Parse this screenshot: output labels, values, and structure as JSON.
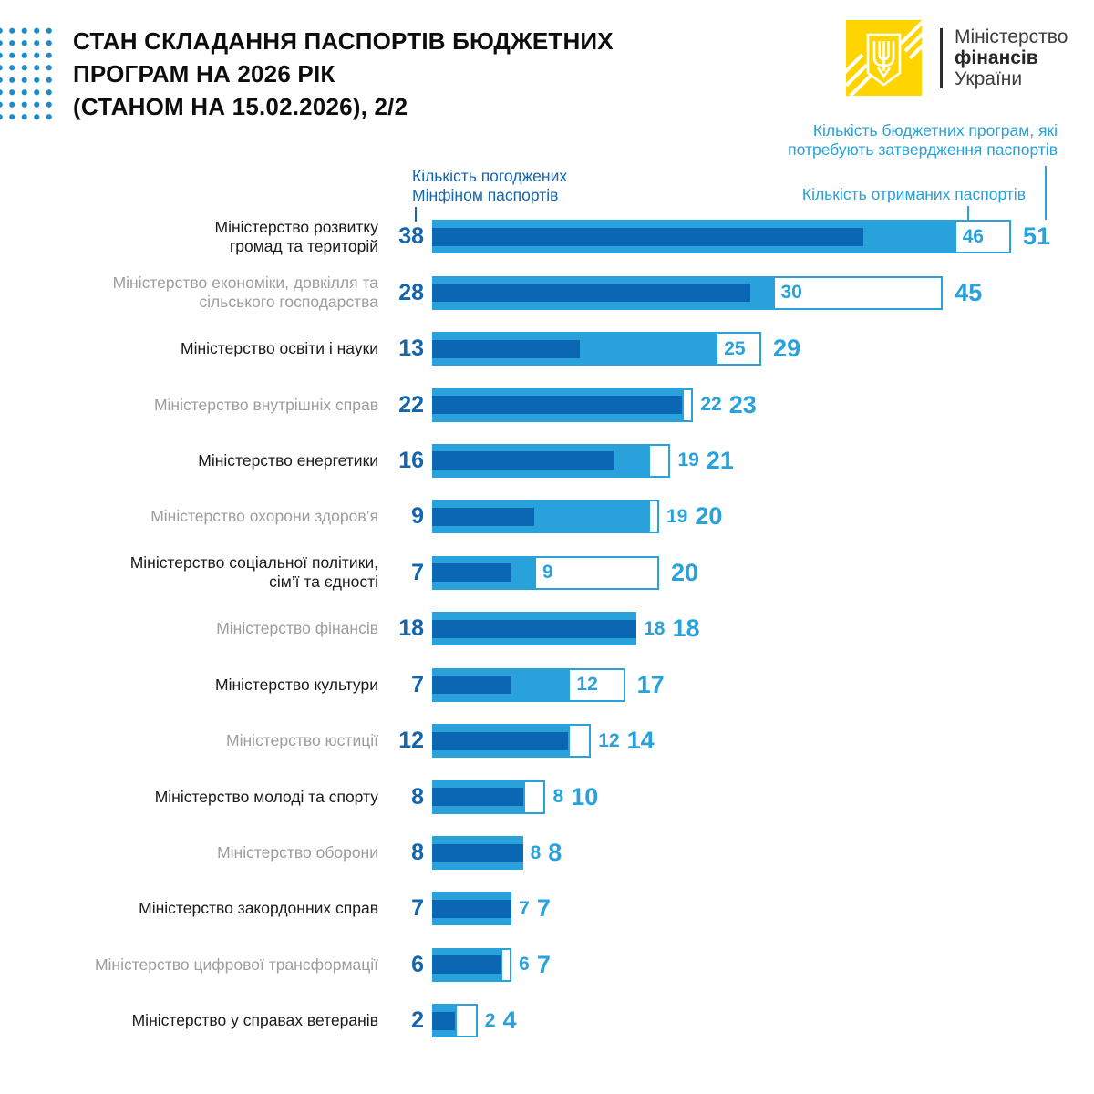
{
  "header": {
    "title_lines": [
      "СТАН СКЛАДАННЯ ПАСПОРТІВ БЮДЖЕТНИХ",
      "ПРОГРАМ НА 2026 РІК",
      "(СТАНОМ НА 15.02.2026), 2/2"
    ],
    "logo": {
      "line1": "Міністерство",
      "line2": "фінансів",
      "line3": "України"
    }
  },
  "legend": {
    "approved": "Кількість погоджених\nМінфіном паспортів",
    "received": "Кількість отриманих паспортів",
    "total": "Кількість бюджетних програм, які\nпотребують затвердження паспортів"
  },
  "colors": {
    "light_blue": "#29A2DB",
    "dark_blue": "#0B67B3",
    "number_dark": "#1464AE",
    "label_black": "#1A1A1A",
    "label_gray": "#9D9D9D",
    "dots_blue": "#1E8BC9",
    "logo_yellow": "#FFD500"
  },
  "chart_data": {
    "type": "bar",
    "orientation": "horizontal",
    "title": "СТАН СКЛАДАННЯ ПАСПОРТІВ БЮДЖЕТНИХ ПРОГРАМ НА 2026 РІК (СТАНОМ НА 15.02.2026), 2/2",
    "xlim": [
      0,
      51
    ],
    "grid": false,
    "legend_position": "top",
    "series_meta": [
      {
        "name": "Кількість погоджених Мінфіном паспортів",
        "style": "inner dark-blue bar"
      },
      {
        "name": "Кількість отриманих паспортів",
        "style": "light-blue bar"
      },
      {
        "name": "Кількість бюджетних програм, які потребують затвердження паспортів",
        "style": "white outlined segment up to total"
      }
    ],
    "rows": [
      {
        "ministry": "Міністерство розвитку\nгромад та територій",
        "approved": 38,
        "received": 46,
        "total": 51,
        "shade": "black"
      },
      {
        "ministry": "Міністерство економіки, довкілля та\nсільського господарства",
        "approved": 28,
        "received": 30,
        "total": 45,
        "shade": "gray"
      },
      {
        "ministry": "Міністерство освіти і науки",
        "approved": 13,
        "received": 25,
        "total": 29,
        "shade": "black"
      },
      {
        "ministry": "Міністерство внутрішніх справ",
        "approved": 22,
        "received": 22,
        "total": 23,
        "shade": "gray"
      },
      {
        "ministry": "Міністерство енергетики",
        "approved": 16,
        "received": 19,
        "total": 21,
        "shade": "black"
      },
      {
        "ministry": "Міністерство охорони здоров’я",
        "approved": 9,
        "received": 19,
        "total": 20,
        "shade": "gray"
      },
      {
        "ministry": "Міністерство соціальної політики,\nсім’ї та єдності",
        "approved": 7,
        "received": 9,
        "total": 20,
        "shade": "black"
      },
      {
        "ministry": "Міністерство фінансів",
        "approved": 18,
        "received": 18,
        "total": 18,
        "shade": "gray"
      },
      {
        "ministry": "Міністерство культури",
        "approved": 7,
        "received": 12,
        "total": 17,
        "shade": "black"
      },
      {
        "ministry": "Міністерство юстиції",
        "approved": 12,
        "received": 12,
        "total": 14,
        "shade": "gray"
      },
      {
        "ministry": "Міністерство молоді та спорту",
        "approved": 8,
        "received": 8,
        "total": 10,
        "shade": "black"
      },
      {
        "ministry": "Міністерство оборони",
        "approved": 8,
        "received": 8,
        "total": 8,
        "shade": "gray"
      },
      {
        "ministry": "Міністерство закордонних справ",
        "approved": 7,
        "received": 7,
        "total": 7,
        "shade": "black"
      },
      {
        "ministry": "Міністерство цифрової трансформації",
        "approved": 6,
        "received": 6,
        "total": 7,
        "shade": "gray"
      },
      {
        "ministry": "Міністерство у справах ветеранів",
        "approved": 2,
        "received": 2,
        "total": 4,
        "shade": "black"
      }
    ]
  }
}
